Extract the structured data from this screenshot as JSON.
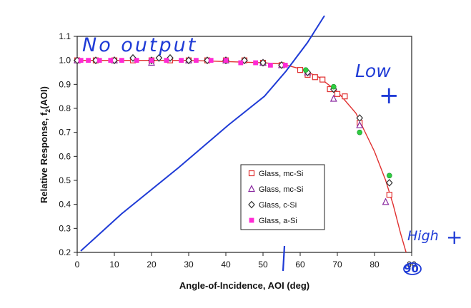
{
  "chart_data": {
    "type": "scatter",
    "xlabel": "Angle-of-Incidence, AOI (deg)",
    "ylabel": "Relative Response, f2(AOI)",
    "ylabel_main": "Relative Response, f",
    "ylabel_sub": "2",
    "ylabel_tail": "(AOI)",
    "xlim": [
      0,
      90
    ],
    "ylim": [
      0.2,
      1.1
    ],
    "xticks": [
      "0",
      "10",
      "20",
      "30",
      "40",
      "50",
      "60",
      "70",
      "80",
      "90"
    ],
    "yticks": [
      "0.2",
      "0.3",
      "0.4",
      "0.5",
      "0.6",
      "0.7",
      "0.8",
      "0.9",
      "1.0",
      "1.1"
    ],
    "grid": false,
    "legend_position": "center-right",
    "series": [
      {
        "name": "Glass, mc-Si",
        "marker": "square-open",
        "color": "#e03030",
        "x": [
          0,
          5,
          10,
          15,
          20,
          25,
          30,
          35,
          40,
          45,
          50,
          55,
          60,
          62,
          64,
          66,
          68,
          70,
          72,
          76,
          84
        ],
        "y": [
          1.0,
          1.0,
          1.0,
          1.0,
          1.0,
          1.0,
          1.0,
          1.0,
          1.0,
          1.0,
          0.99,
          0.98,
          0.96,
          0.94,
          0.93,
          0.92,
          0.88,
          0.86,
          0.85,
          0.74,
          0.44
        ]
      },
      {
        "name": "Glass, mc-Si",
        "marker": "triangle-open",
        "color": "#8a2aa0",
        "x": [
          0,
          10,
          20,
          30,
          40,
          50,
          55,
          62,
          69,
          76,
          83
        ],
        "y": [
          1.0,
          1.0,
          0.99,
          1.0,
          1.0,
          0.99,
          0.98,
          0.95,
          0.84,
          0.73,
          0.41
        ]
      },
      {
        "name": "Glass, c-Si",
        "marker": "diamond-open",
        "color": "#303030",
        "x": [
          0,
          5,
          10,
          15,
          20,
          22,
          25,
          30,
          35,
          40,
          45,
          50,
          55,
          62,
          69,
          76,
          84
        ],
        "y": [
          1.0,
          1.0,
          1.0,
          1.01,
          1.0,
          1.01,
          1.01,
          1.0,
          1.0,
          1.0,
          1.0,
          0.99,
          0.98,
          0.95,
          0.88,
          0.76,
          0.49
        ]
      },
      {
        "name": "Glass, a-Si",
        "marker": "square-filled",
        "color": "#ff2ad4",
        "x": [
          1,
          3,
          6,
          9,
          12,
          16,
          20,
          24,
          28,
          32,
          36,
          40,
          44,
          48,
          52,
          56
        ],
        "y": [
          1.0,
          1.0,
          1.0,
          1.0,
          1.0,
          1.0,
          1.0,
          1.0,
          1.0,
          1.0,
          1.0,
          1.0,
          0.99,
          0.99,
          0.98,
          0.98
        ]
      },
      {
        "name": "",
        "marker": "circle-green",
        "color": "#2ecc40",
        "x": [
          61.5,
          69,
          76,
          84
        ],
        "y": [
          0.96,
          0.89,
          0.7,
          0.52
        ]
      }
    ],
    "fit_curve": {
      "color": "#e03030",
      "x": [
        0,
        30,
        50,
        55,
        60,
        65,
        70,
        75,
        80,
        83,
        85,
        87,
        88.5
      ],
      "y": [
        1.0,
        1.0,
        0.99,
        0.985,
        0.965,
        0.93,
        0.87,
        0.78,
        0.62,
        0.5,
        0.4,
        0.28,
        0.2
      ]
    }
  },
  "annotations": {
    "no_output": "No output",
    "low": "Low",
    "low_mark": "+",
    "high": "High",
    "high_mark": "+",
    "ninety": "90",
    "colors": {
      "ink": "#1f3bd6"
    }
  }
}
